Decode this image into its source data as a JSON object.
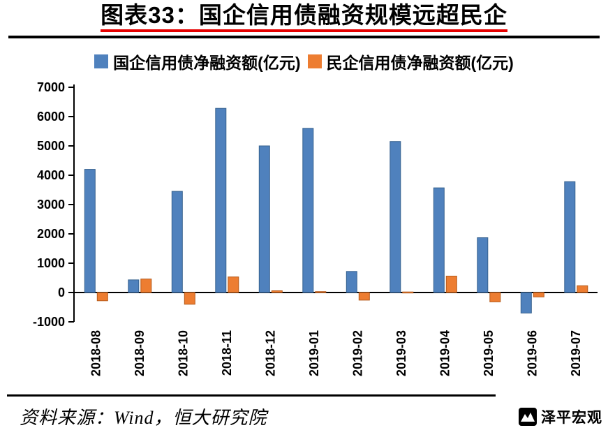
{
  "header": {
    "title": "图表33：国企信用债融资规模远超民企"
  },
  "chart_data": {
    "type": "bar",
    "title": "图表33：国企信用债融资规模远超民企",
    "xlabel": "",
    "ylabel": "",
    "categories": [
      "2018-08",
      "2018-09",
      "2018-10",
      "2018-11",
      "2018-12",
      "2019-01",
      "2019-02",
      "2019-03",
      "2019-04",
      "2019-05",
      "2019-06",
      "2019-07"
    ],
    "series": [
      {
        "name": "国企信用债净融资额(亿元)",
        "color": "#4f81bd",
        "stroke": "#36618e",
        "values": [
          4200,
          430,
          3450,
          6280,
          5000,
          5600,
          720,
          5150,
          3570,
          1870,
          -700,
          3780
        ]
      },
      {
        "name": "民企信用债净融资额(亿元)",
        "color": "#ed7d31",
        "stroke": "#b55a1b",
        "values": [
          -280,
          460,
          -400,
          530,
          60,
          30,
          -260,
          20,
          560,
          -320,
          -150,
          230
        ]
      }
    ],
    "ylim": [
      -1000,
      7000
    ],
    "yticks": [
      -1000,
      0,
      1000,
      2000,
      3000,
      4000,
      5000,
      6000,
      7000
    ],
    "grid": false,
    "legend_position": "top"
  },
  "footer": {
    "source": "资料来源：Wind，恒大研究院",
    "logo_text": "泽平宏观"
  },
  "colors": {
    "title_underline": "#e60000",
    "rule": "#000000"
  }
}
